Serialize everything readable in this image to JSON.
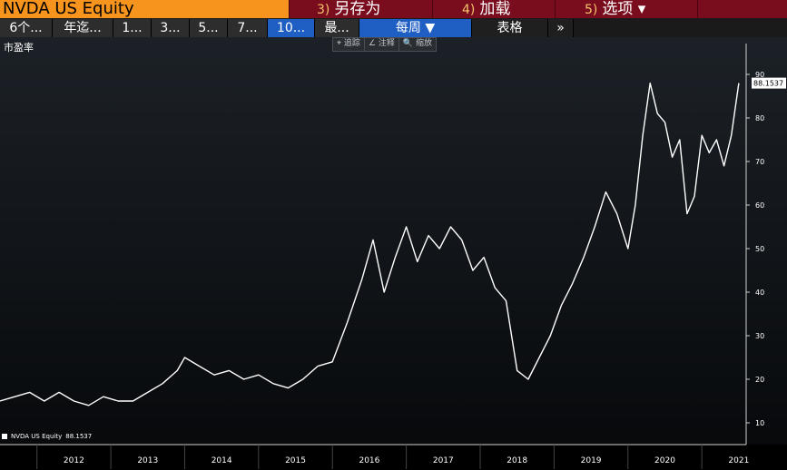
{
  "titlebar": {
    "ticker": "NVDA US Equity",
    "buttons": [
      {
        "num": "3)",
        "label": "另存为"
      },
      {
        "num": "4)",
        "label": "加载"
      },
      {
        "num": "5)",
        "label": "选项 ▾"
      }
    ]
  },
  "toolbar": {
    "ranges": [
      "6个...",
      "年迄...",
      "1...",
      "3...",
      "5...",
      "7...",
      "10...",
      "最..."
    ],
    "active_range": "10...",
    "frequency": "每周 ▼",
    "table": "表格",
    "more": "»"
  },
  "overlay_tools": [
    "⌖ 追踪",
    "∠ 注释",
    "🔍 缩放"
  ],
  "colors": {
    "accent": "#f7941d",
    "titlebar": "#7a0d1d",
    "active": "#1f5fc4",
    "line": "#ffffff"
  },
  "chart_data": {
    "type": "line",
    "ylabel": "市盈率",
    "x_ticks": [
      "2012",
      "2013",
      "2014",
      "2015",
      "2016",
      "2017",
      "2018",
      "2019",
      "2020",
      "2021"
    ],
    "ylim": [
      5,
      95
    ],
    "y_ticks": [
      10,
      20,
      30,
      40,
      50,
      60,
      70,
      80,
      90
    ],
    "series": [
      {
        "name": "NVDA US Equity",
        "last_value_label": "88.1537",
        "x": [
          2011.5,
          2011.7,
          2011.9,
          2012.1,
          2012.3,
          2012.5,
          2012.7,
          2012.9,
          2013.1,
          2013.3,
          2013.5,
          2013.7,
          2013.9,
          2014.0,
          2014.2,
          2014.4,
          2014.6,
          2014.8,
          2015.0,
          2015.2,
          2015.4,
          2015.6,
          2015.8,
          2016.0,
          2016.2,
          2016.4,
          2016.55,
          2016.7,
          2016.85,
          2017.0,
          2017.15,
          2017.3,
          2017.45,
          2017.6,
          2017.75,
          2017.9,
          2018.05,
          2018.2,
          2018.35,
          2018.5,
          2018.65,
          2018.8,
          2018.95,
          2019.1,
          2019.25,
          2019.4,
          2019.55,
          2019.7,
          2019.85,
          2020.0,
          2020.1,
          2020.2,
          2020.3,
          2020.4,
          2020.5,
          2020.6,
          2020.7,
          2020.8,
          2020.9,
          2021.0,
          2021.1,
          2021.2,
          2021.3,
          2021.4,
          2021.5
        ],
        "y": [
          15,
          16,
          17,
          15,
          17,
          15,
          14,
          16,
          15,
          15,
          17,
          19,
          22,
          25,
          23,
          21,
          22,
          20,
          21,
          19,
          18,
          20,
          23,
          24,
          33,
          43,
          52,
          40,
          48,
          55,
          47,
          53,
          50,
          55,
          52,
          45,
          48,
          41,
          38,
          22,
          20,
          25,
          30,
          37,
          42,
          48,
          55,
          63,
          58,
          50,
          60,
          76,
          88,
          81,
          79,
          71,
          75,
          58,
          62,
          76,
          72,
          75,
          69,
          76,
          88
        ]
      }
    ]
  }
}
